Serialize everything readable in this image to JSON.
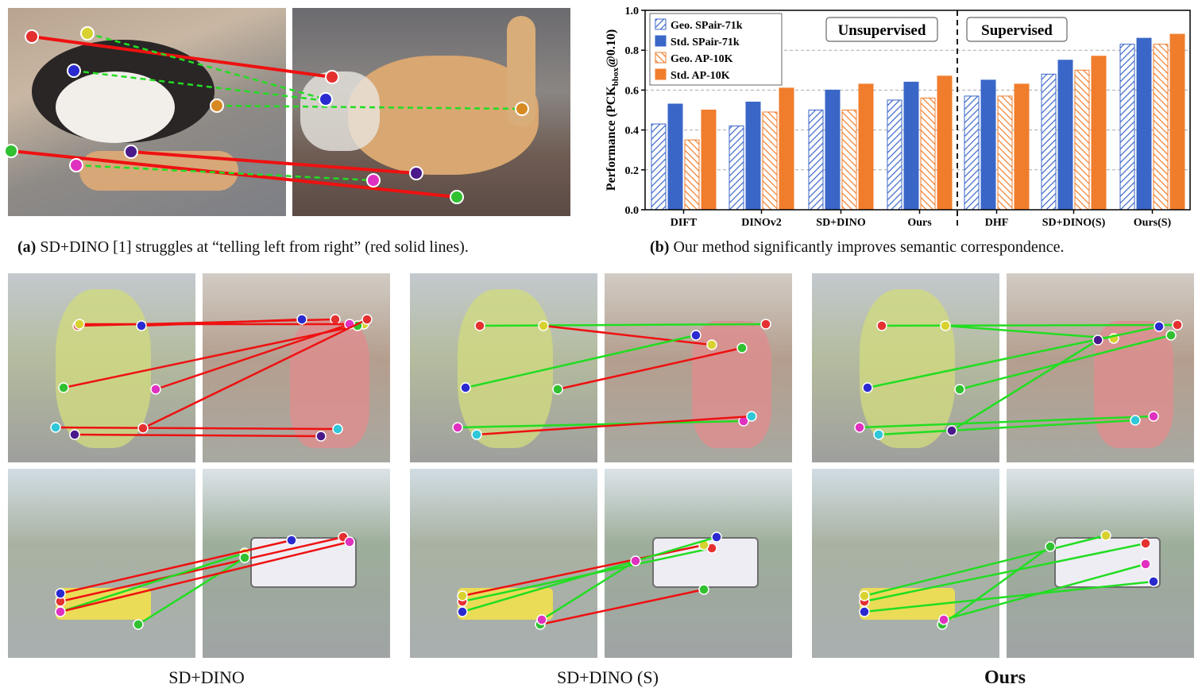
{
  "captions": {
    "a_tag": "(a)",
    "a_text": "SD+DINO [1] struggles at “telling left from right” (red solid lines).",
    "b_tag": "(b)",
    "b_text": "Our method significantly improves semantic correspondence."
  },
  "method_labels": [
    "SD+DINO",
    "SD+DINO (S)",
    "Ours"
  ],
  "colors": {
    "correct_line": "#22dd22",
    "wrong_line": "#ee1111",
    "geo_spair": "#3a66c8",
    "std_spair": "#3a66c8",
    "geo_ap10k": "#f07d2c",
    "std_ap10k": "#f07d2c"
  },
  "chart_data": {
    "type": "bar",
    "ylabel": "Performance (PCK",
    "ylabel_sub": "bbox",
    "ylabel_tail": "@0.10)",
    "ylim": [
      0.0,
      1.0
    ],
    "yticks": [
      "0.0",
      "0.2",
      "0.4",
      "0.6",
      "0.8",
      "1.0"
    ],
    "grid": true,
    "legend_position": "top-left",
    "categories": [
      "DIFT",
      "DINOv2",
      "SD+DINO",
      "Ours",
      "DHF",
      "SD+DINO(S)",
      "Ours(S)"
    ],
    "annotations": [
      "Unsupervised",
      "Supervised"
    ],
    "series": [
      {
        "name": "Geo. SPair-71k",
        "pattern": "hatched",
        "color": "#3a66c8",
        "values": [
          0.43,
          0.42,
          0.5,
          0.55,
          0.57,
          0.68,
          0.83
        ]
      },
      {
        "name": "Std.  SPair-71k",
        "pattern": "solid",
        "color": "#3a66c8",
        "values": [
          0.53,
          0.54,
          0.6,
          0.64,
          0.65,
          0.75,
          0.86
        ]
      },
      {
        "name": "Geo.  AP-10K",
        "pattern": "hatched",
        "color": "#f07d2c",
        "values": [
          0.35,
          0.49,
          0.5,
          0.56,
          0.57,
          0.7,
          0.83
        ]
      },
      {
        "name": "Std.  AP-10K",
        "pattern": "solid",
        "color": "#f07d2c",
        "values": [
          0.5,
          0.61,
          0.63,
          0.67,
          0.63,
          0.77,
          0.88
        ]
      }
    ]
  }
}
